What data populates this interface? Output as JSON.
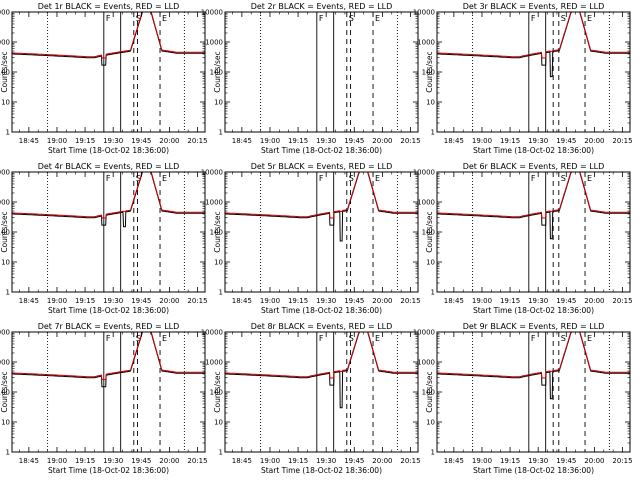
{
  "colors": {
    "events": "#000000",
    "lld": "#cc0000",
    "background": "#ffffff"
  },
  "shared": {
    "xlabel": "Start Time (18-Oct-02 18:36:00)",
    "ylabel": "Counts/sec",
    "x_tick_labels": [
      "18:45",
      "19:00",
      "19:15",
      "19:30",
      "19:45",
      "20:00",
      "20:15"
    ],
    "x_tick_minutes": [
      45,
      60,
      75,
      90,
      105,
      120,
      135
    ],
    "xlim_minutes": [
      36,
      139
    ],
    "y_scale": "log",
    "ylim": [
      1,
      10000
    ],
    "y_tick_labels": [
      "1",
      "10",
      "100",
      "1000",
      "10000"
    ],
    "y_tick_values": [
      1,
      10,
      100,
      1000,
      10000
    ],
    "vlines": [
      {
        "minute": 55,
        "style": "dotted",
        "label": ""
      },
      {
        "minute": 85,
        "style": "solid",
        "label": "F"
      },
      {
        "minute": 101,
        "style": "dashed",
        "label": "S"
      },
      {
        "minute": 115,
        "style": "dashed",
        "label": "E"
      },
      {
        "minute": 128,
        "style": "dotted",
        "label": ""
      }
    ]
  },
  "chart_data": [
    {
      "type": "line",
      "title": "Det 1r BLACK = Events, RED = LLD",
      "has_data": true,
      "solid_line_minute": 94,
      "dashed_line_minute": 103,
      "peak_minute": 108,
      "dip_minute": 85,
      "dip_value": 170,
      "spike_minute": null,
      "spike_value": null
    },
    {
      "type": "line",
      "title": "Det 2r BLACK = Events, RED = LLD",
      "has_data": false,
      "solid_line_minute": 94,
      "dashed_line_minute": 103,
      "peak_minute": null,
      "dip_minute": null,
      "dip_value": null,
      "spike_minute": null,
      "spike_value": null
    },
    {
      "type": "line",
      "title": "Det 3r BLACK = Events, RED = LLD",
      "has_data": true,
      "solid_line_minute": 94,
      "dashed_line_minute": 98,
      "peak_minute": 110,
      "dip_minute": 93,
      "dip_value": 170,
      "spike_minute": 97,
      "spike_value": 70
    },
    {
      "type": "line",
      "title": "Det 4r BLACK = Events, RED = LLD",
      "has_data": true,
      "solid_line_minute": 94,
      "dashed_line_minute": 103,
      "peak_minute": 108,
      "dip_minute": 85,
      "dip_value": 170,
      "spike_minute": 96,
      "spike_value": 150
    },
    {
      "type": "line",
      "title": "Det 5r BLACK = Events, RED = LLD",
      "has_data": true,
      "solid_line_minute": 94,
      "dashed_line_minute": 103,
      "peak_minute": 110,
      "dip_minute": 93,
      "dip_value": 170,
      "spike_minute": 98,
      "spike_value": 50
    },
    {
      "type": "line",
      "title": "Det 6r BLACK = Events, RED = LLD",
      "has_data": true,
      "solid_line_minute": 94,
      "dashed_line_minute": 98,
      "peak_minute": 110,
      "dip_minute": 93,
      "dip_value": 170,
      "spike_minute": 97,
      "spike_value": 60
    },
    {
      "type": "line",
      "title": "Det 7r BLACK = Events, RED = LLD",
      "has_data": true,
      "solid_line_minute": 94,
      "dashed_line_minute": 103,
      "peak_minute": 108,
      "dip_minute": 85,
      "dip_value": 150,
      "spike_minute": null,
      "spike_value": null
    },
    {
      "type": "line",
      "title": "Det 8r BLACK = Events, RED = LLD",
      "has_data": true,
      "solid_line_minute": 94,
      "dashed_line_minute": 103,
      "peak_minute": 110,
      "dip_minute": 93,
      "dip_value": 170,
      "spike_minute": 98,
      "spike_value": 30
    },
    {
      "type": "line",
      "title": "Det 9r BLACK = Events, RED = LLD",
      "has_data": true,
      "solid_line_minute": 94,
      "dashed_line_minute": 98,
      "peak_minute": 110,
      "dip_minute": 93,
      "dip_value": 170,
      "spike_minute": 97,
      "spike_value": 60
    }
  ]
}
